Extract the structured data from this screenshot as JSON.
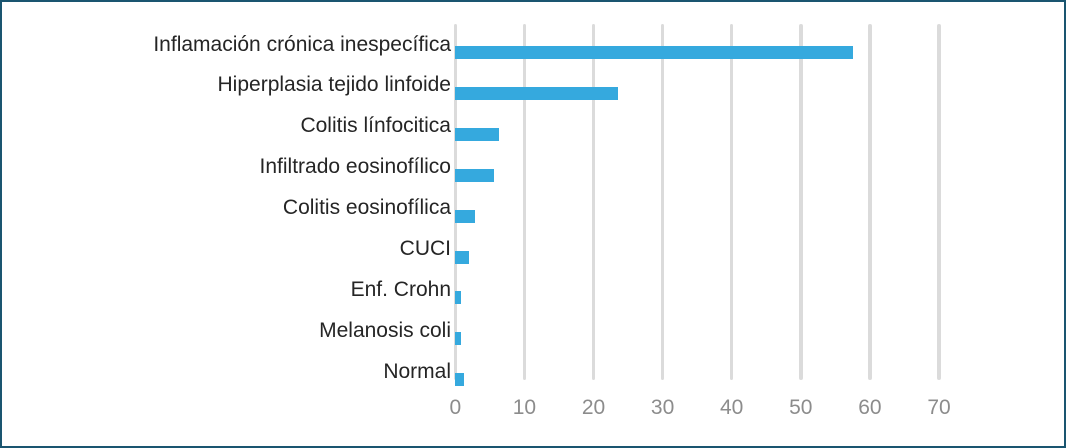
{
  "figure": {
    "border_color": "#1A5570",
    "background_color": "#FFFFFF"
  },
  "chart_data": {
    "type": "bar",
    "orientation": "horizontal",
    "title": "",
    "xlabel": "",
    "ylabel": "",
    "categories": [
      "Inflamación crónica inespecífica",
      "Hiperplasia tejido linfoide",
      "Colitis línfocitica",
      "Infiltrado eosinofílico",
      "Colitis eosinofílica",
      "CUCI",
      "Enf. Crohn",
      "Melanosis coli",
      "Normal"
    ],
    "values": [
      57.5,
      23.5,
      6.3,
      5.6,
      2.9,
      2.0,
      0.8,
      0.8,
      1.3
    ],
    "xlim": [
      0,
      70
    ],
    "xticks": [
      0,
      10,
      20,
      30,
      40,
      50,
      60,
      70
    ],
    "grid": "vertical-gridlines-on",
    "legend": "none",
    "bar_color": "#35A9DE",
    "gridline_color": "#DBDBDB",
    "category_label_color": "#252525",
    "tick_label_color": "#8C8C8C"
  }
}
